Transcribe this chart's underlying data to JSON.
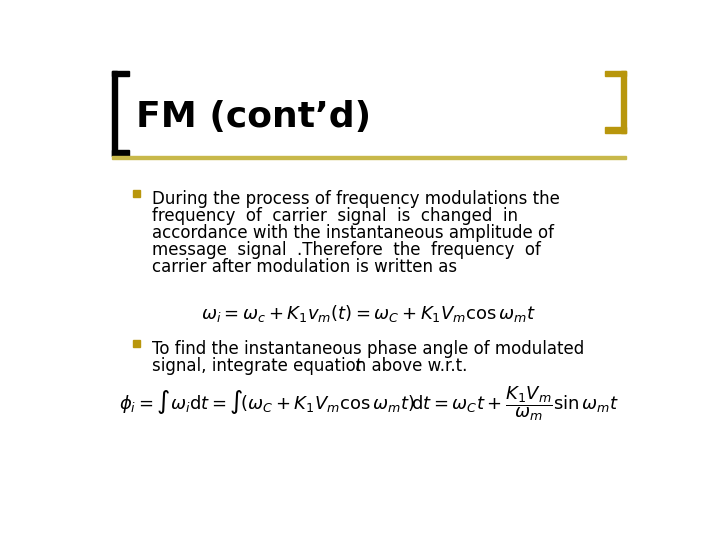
{
  "title": "FM (cont’d)",
  "title_color": "#000000",
  "title_fontsize": 26,
  "background_color": "#ffffff",
  "bracket_color": "#b8960c",
  "left_bracket_color": "#000000",
  "bullet_color": "#b8960c",
  "bullet1_lines": [
    "During the process of frequency modulations the",
    "frequency  of  carrier  signal  is  changed  in",
    "accordance with the instantaneous amplitude of",
    "message  signal  .Therefore  the  frequency  of",
    "carrier after modulation is written as"
  ],
  "bullet2_line1": "To find the instantaneous phase angle of modulated",
  "bullet2_line2_plain": "signal, integrate equation above w.r.t. ",
  "bullet2_line2_italic": "t",
  "eq_fontsize": 13,
  "text_fontsize": 12,
  "accent_line_color": "#c8b84a"
}
